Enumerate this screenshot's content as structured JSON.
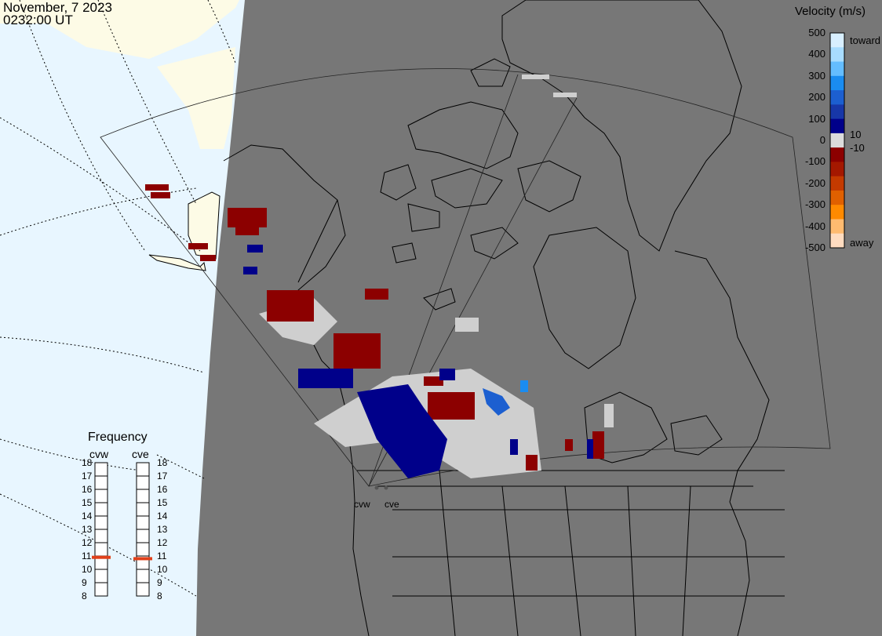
{
  "header": {
    "date": "November, 7 2023",
    "time": "0232:00 UT"
  },
  "velocity_scale": {
    "title": "Velocity (m/s)",
    "ticks": [
      "500",
      "400",
      "300",
      "200",
      "100",
      "0",
      "-100",
      "-200",
      "-300",
      "-400",
      "-500"
    ],
    "toward_label": "toward",
    "away_label": "away",
    "label_10": "10",
    "label_minus10": "-10",
    "colors": [
      "#d8efff",
      "#a8dcff",
      "#64bdff",
      "#1a8cf0",
      "#1c5fd0",
      "#1737a8",
      "#00008a",
      "#dcdcdc",
      "#8c0000",
      "#a41800",
      "#c43a00",
      "#e06000",
      "#ff8a00",
      "#ffbb70",
      "#ffdcc0"
    ]
  },
  "frequency": {
    "title": "Frequency",
    "radars": [
      {
        "name": "cvw",
        "value": 10.9
      },
      {
        "name": "cve",
        "value": 10.8
      }
    ],
    "ticks": [
      "18",
      "17",
      "16",
      "15",
      "14",
      "13",
      "12",
      "11",
      "10",
      "9",
      "8"
    ],
    "marker_color": "#e0401a"
  },
  "sites": [
    "cvw",
    "cve"
  ],
  "colors": {
    "ocean": "#e8f6ff",
    "land_other": "#fdfbe6",
    "night": "#777777",
    "ground_scatter": "#cfcfcf"
  }
}
